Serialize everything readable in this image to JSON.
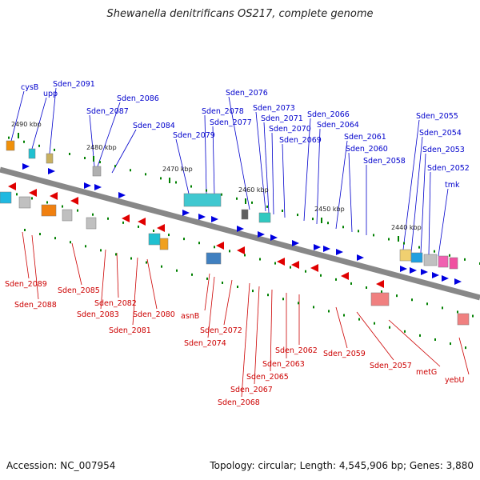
{
  "title": "Shewanella denitrificans OS217, complete genome",
  "footer": {
    "accession": "Accession: NC_007954",
    "details": "Topology: circular; Length: 4,545,906 bp; Genes: 3,880"
  },
  "scale_marks": [
    "2490 kbp",
    "2480 kbp",
    "2470 kbp",
    "2460 kbp",
    "2450 kbp",
    "2440 kbp"
  ],
  "top_genes": [
    "cysB",
    "upp",
    "Sden_2091",
    "Sden_2086",
    "Sden_2087",
    "Sden_2084",
    "Sden_2076",
    "Sden_2078",
    "Sden_2077",
    "Sden_2079",
    "Sden_2073",
    "Sden_2071",
    "Sden_2070",
    "Sden_2069",
    "Sden_2066",
    "Sden_2064",
    "Sden_2061",
    "Sden_2060",
    "Sden_2058",
    "Sden_2055",
    "Sden_2054",
    "Sden_2053",
    "Sden_2052",
    "tmk"
  ],
  "bottom_genes": [
    "Sden_2089",
    "Sden_2088",
    "Sden_2085",
    "Sden_2082",
    "Sden_2083",
    "Sden_2080",
    "Sden_2081",
    "asnB",
    "Sden_2072",
    "Sden_2074",
    "Sden_2062",
    "Sden_2063",
    "Sden_2065",
    "Sden_2067",
    "Sden_2068",
    "Sden_2059",
    "Sden_2057",
    "metG",
    "yebU"
  ],
  "colors": {
    "forward": "#0000e0",
    "reverse": "#e00000",
    "forward_label": "#0000cc",
    "reverse_label": "#cc0000",
    "backbone": "#808080",
    "tick": "#008000"
  }
}
